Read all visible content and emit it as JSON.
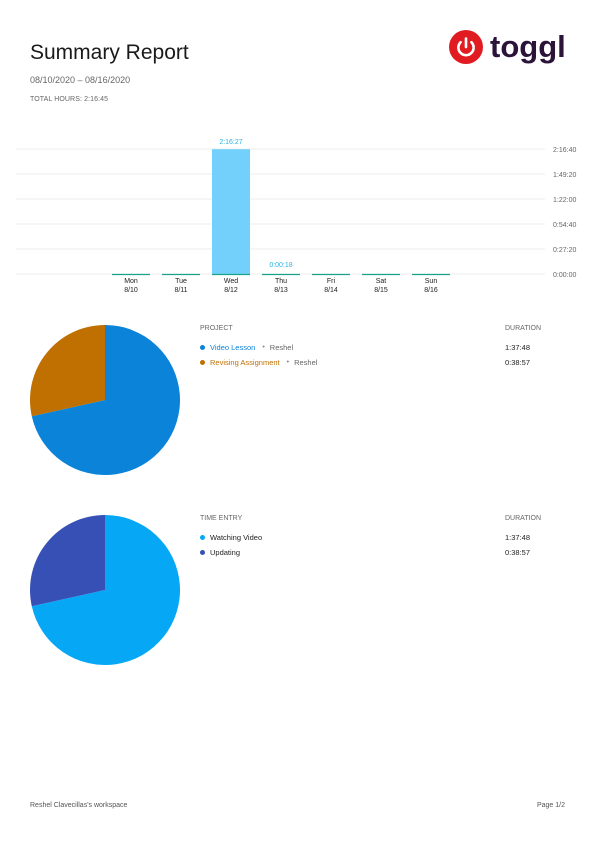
{
  "header": {
    "title": "Summary Report",
    "date_range": "08/10/2020 – 08/16/2020",
    "total_hours": "TOTAL HOURS: 2:16:45",
    "logo_text": "toggl",
    "logo_icon": "power-icon"
  },
  "chart_data": [
    {
      "type": "bar",
      "categories": [
        "Mon 8/10",
        "Tue 8/11",
        "Wed 8/12",
        "Thu 8/13",
        "Fri 8/14",
        "Sat 8/15",
        "Sun 8/16"
      ],
      "day_names": [
        "Mon",
        "Tue",
        "Wed",
        "Thu",
        "Fri",
        "Sat",
        "Sun"
      ],
      "day_dates": [
        "8/10",
        "8/11",
        "8/12",
        "8/13",
        "8/14",
        "8/15",
        "8/16"
      ],
      "values_seconds": [
        0,
        0,
        8187,
        18,
        0,
        0,
        0
      ],
      "data_labels": [
        "",
        "",
        "2:16:27",
        "0:00:18",
        "",
        "",
        ""
      ],
      "y_ticks": [
        "0:00:00",
        "0:27:20",
        "0:54:40",
        "1:22:00",
        "1:49:20",
        "2:16:40"
      ],
      "y_tick_seconds": [
        0,
        1640,
        3280,
        4920,
        6560,
        8200
      ],
      "ylim": [
        0,
        8200
      ],
      "bar_color": "#72d0fb",
      "baseline_color": "#1aa38a",
      "grid": true
    },
    {
      "type": "pie",
      "heading": "PROJECT",
      "duration_heading": "DURATION",
      "slices": [
        {
          "label": "Video Lesson",
          "client": "Reshel",
          "duration": "1:37:48",
          "seconds": 5868,
          "color": "#0b83d9"
        },
        {
          "label": "Revising Assignment",
          "client": "Reshel",
          "duration": "0:38:57",
          "seconds": 2337,
          "color": "#bf7000"
        }
      ]
    },
    {
      "type": "pie",
      "heading": "TIME ENTRY",
      "duration_heading": "DURATION",
      "slices": [
        {
          "label": "Watching Video",
          "client": "",
          "duration": "1:37:48",
          "seconds": 5868,
          "color": "#06a8f5"
        },
        {
          "label": "Updating",
          "client": "",
          "duration": "0:38:57",
          "seconds": 2337,
          "color": "#3750b5"
        }
      ]
    }
  ],
  "footer": {
    "workspace": "Reshel Clavecillas's workspace",
    "page": "Page 1/2"
  }
}
